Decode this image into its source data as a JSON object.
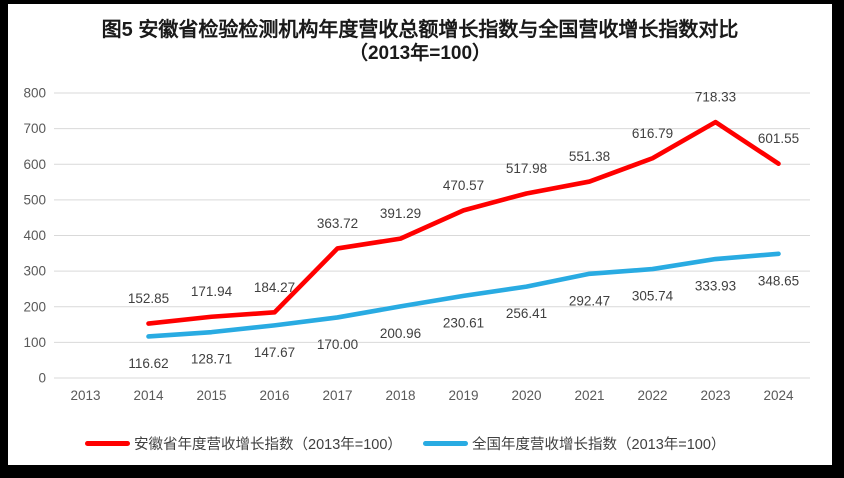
{
  "figure": {
    "title_line1": "图5  安徽省检验检测机构年度营收总额增长指数与全国营收增长指数对比",
    "title_line2": "（2013年=100）"
  },
  "chart_data": {
    "type": "line",
    "title": "图5  安徽省检验检测机构年度营收总额增长指数与全国营收增长指数对比（2013年=100）",
    "categories": [
      "2013",
      "2014",
      "2015",
      "2016",
      "2017",
      "2018",
      "2019",
      "2020",
      "2021",
      "2022",
      "2023",
      "2024"
    ],
    "series": [
      {
        "name": "安徽省年度营收增长指数（2013年=100）",
        "color": "#FF0000",
        "label_position": "above",
        "values": [
          null,
          152.85,
          171.94,
          184.27,
          363.72,
          391.29,
          470.57,
          517.98,
          551.38,
          616.79,
          718.33,
          601.55
        ]
      },
      {
        "name": "全国年度营收增长指数（2013年=100）",
        "color": "#29ABE2",
        "label_position": "below",
        "values": [
          null,
          116.62,
          128.71,
          147.67,
          170.0,
          200.96,
          230.61,
          256.41,
          292.47,
          305.74,
          333.93,
          348.65
        ]
      }
    ],
    "xlabel": "",
    "ylabel": "",
    "ylim": [
      0,
      800
    ],
    "ytick_step": 100,
    "yticks": [
      0,
      100,
      200,
      300,
      400,
      500,
      600,
      700,
      800
    ],
    "grid": true,
    "legend_position": "bottom",
    "value_label_decimals": 2,
    "colors": {
      "gridline": "#D9D9D9",
      "tick_label": "#595959",
      "data_label": "#404040"
    }
  }
}
